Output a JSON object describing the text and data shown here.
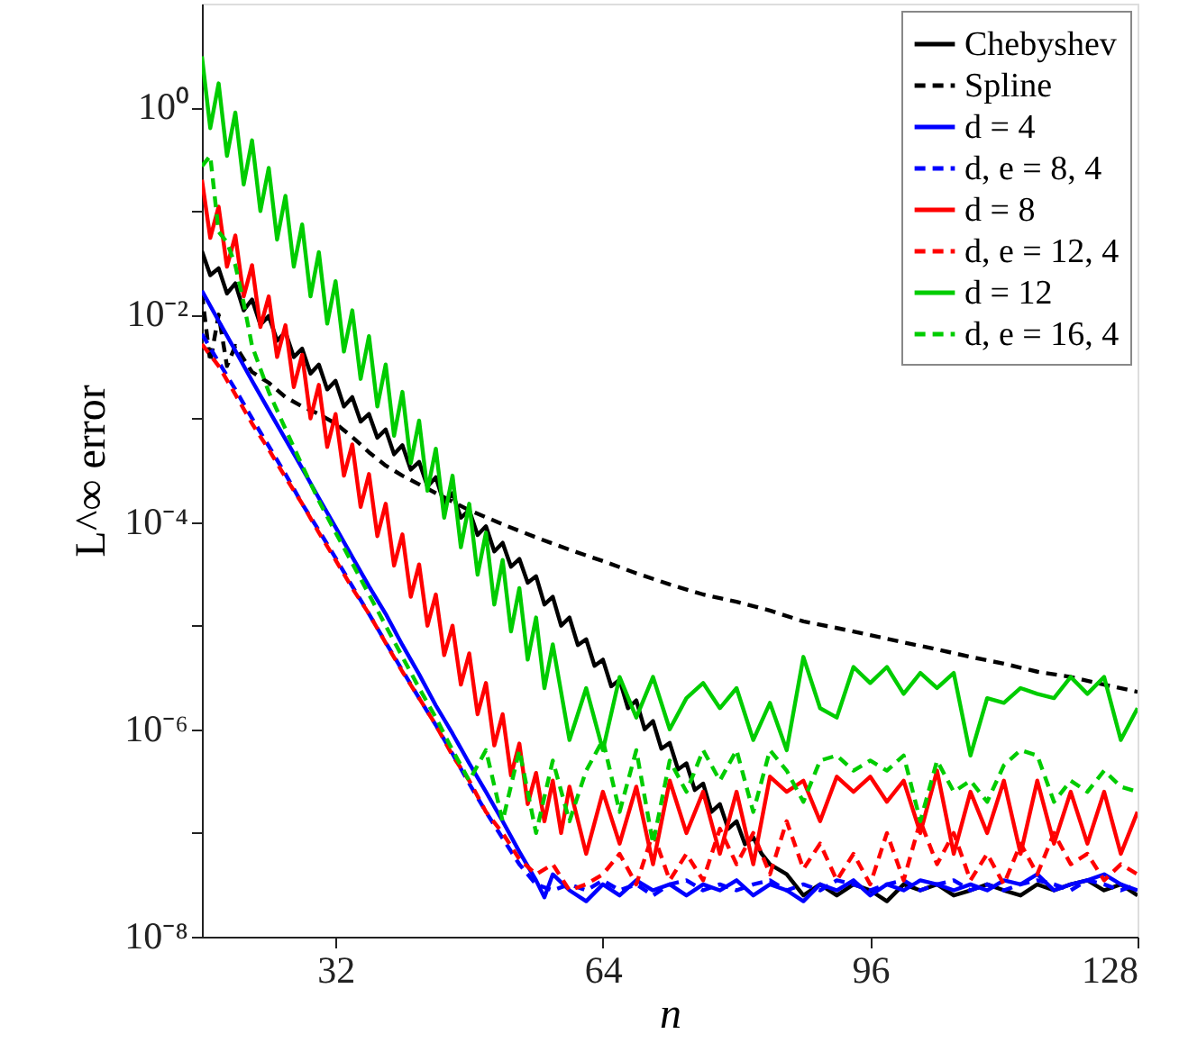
{
  "chart_data": {
    "type": "line",
    "xlabel": "n",
    "ylabel": "L^∞ error",
    "xlim": [
      16,
      128
    ],
    "xticks": [
      32,
      64,
      96,
      128
    ],
    "ylim": [
      1e-08,
      10
    ],
    "yticks": [
      {
        "value": 1e-08,
        "label": "10⁻⁸"
      },
      {
        "value": 1e-07,
        "label": null
      },
      {
        "value": 1e-06,
        "label": "10⁻⁶"
      },
      {
        "value": 1e-05,
        "label": null
      },
      {
        "value": 0.0001,
        "label": "10⁻⁴"
      },
      {
        "value": 0.001,
        "label": null
      },
      {
        "value": 0.01,
        "label": "10⁻²"
      },
      {
        "value": 0.1,
        "label": null
      },
      {
        "value": 1,
        "label": "10⁰"
      }
    ],
    "log": "y",
    "grid": false,
    "legend": "top right",
    "series": [
      {
        "name": "Chebyshev",
        "color": "#000000",
        "line_style": "solid",
        "x": [
          16,
          17,
          18,
          19,
          20,
          21,
          22,
          23,
          24,
          25,
          26,
          27,
          28,
          29,
          30,
          31,
          32,
          33,
          34,
          35,
          36,
          37,
          38,
          39,
          40,
          41,
          42,
          43,
          44,
          45,
          46,
          47,
          48,
          49,
          50,
          51,
          52,
          53,
          54,
          55,
          56,
          57,
          58,
          59,
          60,
          61,
          62,
          63,
          64,
          65,
          66,
          67,
          68,
          69,
          70,
          71,
          72,
          73,
          74,
          75,
          76,
          77,
          78,
          79,
          80,
          81,
          82,
          83,
          84,
          86,
          88,
          90,
          92,
          94,
          96,
          98,
          100,
          102,
          104,
          106,
          108,
          110,
          112,
          114,
          116,
          118,
          120,
          122,
          124,
          126,
          128
        ],
        "values": [
          0.041,
          0.024,
          0.028,
          0.016,
          0.02,
          0.011,
          0.014,
          0.008,
          0.0097,
          0.0056,
          0.0068,
          0.0039,
          0.0047,
          0.0027,
          0.0033,
          0.0019,
          0.0023,
          0.0013,
          0.0016,
          0.00093,
          0.0011,
          0.00065,
          0.00078,
          0.00045,
          0.00055,
          0.00032,
          0.00038,
          0.00022,
          0.00027,
          0.00015,
          0.00019,
          0.00011,
          0.00013,
          7.5e-05,
          9.1e-05,
          5.2e-05,
          6.3e-05,
          3.7e-05,
          4.4e-05,
          2.6e-05,
          3e-05,
          1.6e-05,
          1.9e-05,
          1e-05,
          1.2e-05,
          6.5e-06,
          7.4e-06,
          4.1e-06,
          4.7e-06,
          2.6e-06,
          3e-06,
          1.6e-06,
          1.9e-06,
          1e-06,
          1.2e-06,
          6.5e-07,
          7.4e-07,
          4.1e-07,
          4.7e-07,
          2.6e-07,
          3e-07,
          1.6e-07,
          1.9e-07,
          1.1e-07,
          1.3e-07,
          7.8e-08,
          9.1e-08,
          6.3e-08,
          5e-08,
          4e-08,
          2.5e-08,
          3.2e-08,
          2.5e-08,
          3.2e-08,
          2.8e-08,
          2.2e-08,
          3.2e-08,
          2.8e-08,
          3.2e-08,
          2.5e-08,
          2.8e-08,
          3.2e-08,
          2.8e-08,
          2.5e-08,
          3.2e-08,
          2.8e-08,
          3.2e-08,
          3.5e-08,
          2.8e-08,
          3.2e-08,
          2.5e-08
        ]
      },
      {
        "name": "Spline",
        "color": "#000000",
        "line_style": "dashed",
        "x": [
          16,
          17,
          18,
          19,
          20,
          22,
          24,
          26,
          28,
          30,
          32,
          34,
          36,
          38,
          40,
          44,
          48,
          52,
          56,
          60,
          64,
          68,
          72,
          76,
          80,
          84,
          88,
          92,
          96,
          100,
          104,
          108,
          112,
          116,
          120,
          124,
          128
        ],
        "values": [
          0.016,
          0.0035,
          0.01,
          0.0032,
          0.005,
          0.0028,
          0.0022,
          0.0016,
          0.0013,
          0.0011,
          0.00089,
          0.00066,
          0.00047,
          0.00035,
          0.00028,
          0.00019,
          0.00013,
          9.5e-05,
          7.1e-05,
          5.4e-05,
          4.2e-05,
          3.2e-05,
          2.5e-05,
          2e-05,
          1.7e-05,
          1.4e-05,
          1.1e-05,
          9.5e-06,
          8.1e-06,
          6.9e-06,
          5.9e-06,
          5e-06,
          4.3e-06,
          3.6e-06,
          3.2e-06,
          2.7e-06,
          2.3e-06
        ]
      },
      {
        "name": "d = 4",
        "color": "#0000ff",
        "line_style": "solid",
        "x": [
          16,
          18,
          20,
          22,
          24,
          26,
          28,
          30,
          32,
          34,
          36,
          38,
          40,
          42,
          44,
          46,
          48,
          50,
          52,
          54,
          56,
          57,
          58,
          60,
          62,
          64,
          66,
          68,
          70,
          72,
          74,
          76,
          78,
          80,
          82,
          84,
          86,
          88,
          90,
          92,
          94,
          96,
          98,
          100,
          102,
          104,
          106,
          108,
          110,
          112,
          114,
          116,
          118,
          120,
          122,
          124,
          126,
          128
        ],
        "values": [
          0.017,
          0.0087,
          0.0045,
          0.0023,
          0.0012,
          0.00063,
          0.00033,
          0.00017,
          8.9e-05,
          4.6e-05,
          2.4e-05,
          1.3e-05,
          6.5e-06,
          3.4e-06,
          1.7e-06,
          9.1e-07,
          4.7e-07,
          2.5e-07,
          1.3e-07,
          6.6e-08,
          3.5e-08,
          2.4e-08,
          4e-08,
          2.8e-08,
          2.2e-08,
          3.2e-08,
          2.5e-08,
          3.5e-08,
          2.8e-08,
          3.2e-08,
          2.5e-08,
          3.2e-08,
          2.8e-08,
          3.5e-08,
          2.5e-08,
          3.2e-08,
          2.8e-08,
          2.2e-08,
          3.2e-08,
          2.8e-08,
          3.5e-08,
          2.5e-08,
          3.2e-08,
          2.8e-08,
          3.5e-08,
          3.2e-08,
          2.8e-08,
          3.2e-08,
          2.8e-08,
          3.5e-08,
          3.2e-08,
          4e-08,
          2.8e-08,
          3.2e-08,
          3.5e-08,
          4e-08,
          3.2e-08,
          2.8e-08
        ]
      },
      {
        "name": "d, e = 8, 4",
        "color": "#0000ff",
        "line_style": "dashed",
        "x": [
          16,
          18,
          20,
          22,
          24,
          26,
          28,
          30,
          32,
          34,
          36,
          38,
          40,
          42,
          44,
          46,
          48,
          50,
          52,
          54,
          56,
          58,
          60,
          62,
          64,
          66,
          68,
          70,
          72,
          74,
          76,
          78,
          80,
          82,
          84,
          86,
          88,
          90,
          92,
          94,
          96,
          98,
          100,
          102,
          104,
          106,
          108,
          110,
          112,
          114,
          116,
          118,
          120,
          122,
          124,
          126,
          128
        ],
        "values": [
          0.0065,
          0.0035,
          0.0019,
          0.001,
          0.00054,
          0.00029,
          0.00015,
          8.3e-05,
          4.5e-05,
          2.4e-05,
          1.3e-05,
          6.9e-06,
          3.7e-06,
          2e-06,
          1.1e-06,
          5.8e-07,
          3e-07,
          1.6e-07,
          8.9e-08,
          5e-08,
          3.2e-08,
          2.8e-08,
          3.2e-08,
          2.8e-08,
          3.5e-08,
          2.8e-08,
          3.2e-08,
          2.5e-08,
          3.2e-08,
          3.5e-08,
          2.8e-08,
          3.2e-08,
          2.8e-08,
          3.2e-08,
          3.5e-08,
          2.8e-08,
          3.2e-08,
          2.8e-08,
          3.5e-08,
          3.2e-08,
          2.8e-08,
          3.2e-08,
          3.5e-08,
          2.8e-08,
          3.2e-08,
          3.5e-08,
          2.8e-08,
          3.2e-08,
          2.8e-08,
          3.2e-08,
          3.5e-08,
          3.2e-08,
          2.8e-08,
          3.5e-08,
          3.2e-08,
          2.8e-08,
          3.2e-08
        ]
      },
      {
        "name": "d = 8",
        "color": "#ff0000",
        "line_style": "solid",
        "x": [
          16,
          17,
          18,
          19,
          20,
          21,
          22,
          23,
          24,
          25,
          26,
          27,
          28,
          29,
          30,
          31,
          32,
          33,
          34,
          35,
          36,
          37,
          38,
          39,
          40,
          41,
          42,
          43,
          44,
          45,
          46,
          47,
          48,
          49,
          50,
          51,
          52,
          53,
          54,
          55,
          56,
          57,
          58,
          59,
          60,
          62,
          64,
          66,
          68,
          70,
          72,
          74,
          76,
          78,
          80,
          82,
          84,
          86,
          88,
          90,
          92,
          94,
          96,
          98,
          100,
          102,
          104,
          106,
          108,
          110,
          112,
          114,
          116,
          118,
          120,
          122,
          124,
          126,
          128
        ],
        "values": [
          0.2,
          0.055,
          0.11,
          0.029,
          0.058,
          0.015,
          0.03,
          0.0076,
          0.015,
          0.0039,
          0.0079,
          0.002,
          0.0041,
          0.001,
          0.0021,
          0.00053,
          0.0011,
          0.00028,
          0.00056,
          0.00014,
          0.00029,
          7.3e-05,
          0.00015,
          3.8e-05,
          7.6e-05,
          1.9e-05,
          3.9e-05,
          1e-05,
          2e-05,
          5.2e-06,
          1e-05,
          2.7e-06,
          5.4e-06,
          1.4e-06,
          2.8e-06,
          7e-07,
          1.4e-06,
          3.6e-07,
          7.3e-07,
          1.9e-07,
          3.8e-07,
          1.3e-07,
          3.2e-07,
          1e-07,
          2.8e-07,
          6.3e-08,
          2.5e-07,
          7.9e-08,
          2.8e-07,
          5e-08,
          3.2e-07,
          1e-07,
          2.5e-07,
          6.3e-08,
          2.5e-07,
          5e-08,
          3.5e-07,
          2.5e-07,
          3.2e-07,
          1.3e-07,
          3.5e-07,
          2.5e-07,
          3.5e-07,
          2e-07,
          3.2e-07,
          1e-07,
          4e-07,
          6.3e-08,
          2.5e-07,
          1e-07,
          3.2e-07,
          6.3e-08,
          3.2e-07,
          7.9e-08,
          2.5e-07,
          7.9e-08,
          2.5e-07,
          6.3e-08,
          1.6e-07
        ]
      },
      {
        "name": "d, e = 12, 4",
        "color": "#ff0000",
        "line_style": "dashed",
        "x": [
          16,
          18,
          20,
          22,
          24,
          26,
          28,
          30,
          32,
          34,
          36,
          38,
          40,
          42,
          44,
          46,
          48,
          50,
          52,
          54,
          56,
          58,
          60,
          62,
          64,
          66,
          68,
          70,
          72,
          74,
          76,
          78,
          80,
          82,
          84,
          86,
          88,
          90,
          92,
          94,
          96,
          98,
          100,
          102,
          104,
          106,
          108,
          110,
          112,
          114,
          116,
          118,
          120,
          122,
          124,
          126,
          128
        ],
        "values": [
          0.0052,
          0.0032,
          0.0017,
          0.00089,
          0.0005,
          0.00027,
          0.00015,
          7.9e-05,
          4.3e-05,
          2.3e-05,
          1.3e-05,
          6.8e-06,
          3.6e-06,
          2e-06,
          1.1e-06,
          5.6e-07,
          3.2e-07,
          1.6e-07,
          1e-07,
          5.6e-08,
          4e-08,
          5e-08,
          2.8e-08,
          3.2e-08,
          4e-08,
          6.3e-08,
          3.2e-08,
          1e-07,
          3.5e-08,
          6.3e-08,
          3.5e-08,
          1.1e-07,
          5e-08,
          1e-07,
          4e-08,
          1.3e-07,
          4.5e-08,
          7.9e-08,
          3.5e-08,
          6.3e-08,
          3.2e-08,
          1e-07,
          3.5e-08,
          1.3e-07,
          5e-08,
          1e-07,
          3.5e-08,
          6.3e-08,
          3.2e-08,
          7.9e-08,
          4e-08,
          1e-07,
          5e-08,
          6.3e-08,
          3.5e-08,
          5e-08,
          4e-08
        ]
      },
      {
        "name": "d = 12",
        "color": "#00cc00",
        "line_style": "solid",
        "x": [
          16,
          17,
          18,
          19,
          20,
          21,
          22,
          23,
          24,
          25,
          26,
          27,
          28,
          29,
          30,
          31,
          32,
          33,
          34,
          35,
          36,
          37,
          38,
          39,
          40,
          41,
          42,
          43,
          44,
          45,
          46,
          47,
          48,
          49,
          50,
          51,
          52,
          53,
          54,
          55,
          56,
          57,
          58,
          60,
          62,
          64,
          66,
          68,
          70,
          72,
          74,
          76,
          78,
          80,
          82,
          84,
          86,
          88,
          90,
          92,
          94,
          96,
          98,
          100,
          102,
          104,
          106,
          108,
          110,
          112,
          114,
          116,
          118,
          120,
          122,
          124,
          126,
          128
        ],
        "values": [
          3.1,
          0.63,
          1.7,
          0.34,
          0.89,
          0.18,
          0.48,
          0.1,
          0.26,
          0.053,
          0.14,
          0.029,
          0.074,
          0.015,
          0.04,
          0.0082,
          0.021,
          0.0044,
          0.011,
          0.0024,
          0.0062,
          0.0013,
          0.0033,
          0.00068,
          0.0018,
          0.00037,
          0.00095,
          0.0002,
          0.00051,
          0.00011,
          0.00028,
          5.7e-05,
          0.00015,
          3.1e-05,
          7.9e-05,
          1.6e-05,
          4.3e-05,
          8.8e-06,
          2.3e-05,
          4.7e-06,
          1.2e-05,
          2.5e-06,
          6.6e-06,
          7.9e-07,
          2.5e-06,
          6.3e-07,
          3.2e-06,
          1.3e-06,
          3.2e-06,
          1e-06,
          2e-06,
          2.8e-06,
          1.6e-06,
          2.5e-06,
          7.9e-07,
          1.8e-06,
          6.3e-07,
          5e-06,
          1.6e-06,
          1.3e-06,
          4e-06,
          2.8e-06,
          4e-06,
          2.2e-06,
          3.5e-06,
          2.5e-06,
          3.5e-06,
          5.6e-07,
          2e-06,
          1.8e-06,
          2.5e-06,
          2.2e-06,
          2e-06,
          3.2e-06,
          2.2e-06,
          3.2e-06,
          7.9e-07,
          1.6e-06
        ]
      },
      {
        "name": "d, e = 16, 4",
        "color": "#00cc00",
        "line_style": "dashed",
        "x": [
          16,
          17,
          18,
          19,
          20,
          21,
          22,
          24,
          26,
          28,
          30,
          32,
          34,
          36,
          38,
          40,
          42,
          44,
          46,
          48,
          50,
          52,
          54,
          56,
          58,
          60,
          62,
          64,
          66,
          68,
          70,
          72,
          74,
          76,
          78,
          80,
          82,
          84,
          86,
          88,
          90,
          92,
          94,
          96,
          98,
          100,
          102,
          104,
          106,
          108,
          110,
          112,
          114,
          116,
          118,
          120,
          122,
          124,
          126,
          128
        ],
        "values": [
          0.27,
          0.34,
          0.063,
          0.05,
          0.03,
          0.013,
          0.005,
          0.0018,
          0.00079,
          0.00035,
          0.00016,
          7.9e-05,
          4e-05,
          2e-05,
          1e-05,
          5e-06,
          2.5e-06,
          1.3e-06,
          6.3e-07,
          3.2e-07,
          6.3e-07,
          1.3e-07,
          6.3e-07,
          1e-07,
          5e-07,
          1.3e-07,
          4e-07,
          7.9e-07,
          1.6e-07,
          6.3e-07,
          7.9e-08,
          5e-07,
          2.5e-07,
          6.3e-07,
          3.2e-07,
          6.3e-07,
          1.6e-07,
          6.3e-07,
          4e-07,
          2e-07,
          5e-07,
          5.6e-07,
          4e-07,
          5e-07,
          4e-07,
          5.6e-07,
          1.3e-07,
          5e-07,
          2.5e-07,
          3.2e-07,
          2e-07,
          4.5e-07,
          6.3e-07,
          5.6e-07,
          2e-07,
          3.2e-07,
          2.5e-07,
          4e-07,
          2.8e-07,
          2.5e-07
        ]
      }
    ]
  }
}
